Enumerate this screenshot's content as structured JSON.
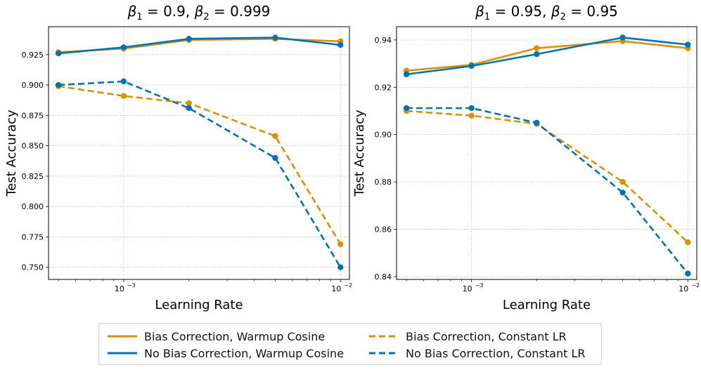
{
  "chart_data": [
    {
      "type": "line",
      "title": "β₁ = 0.9, β₂ = 0.999",
      "title_parts": {
        "b1": "β",
        "s1": "1",
        "eq1": " = 0.9, ",
        "b2": "β",
        "s2": "2",
        "eq2": " = 0.999"
      },
      "xlabel": "Learning Rate",
      "ylabel": "Test Accuracy",
      "xscale": "log",
      "xlim": [
        0.00045,
        0.011
      ],
      "ylim": [
        0.74,
        0.948
      ],
      "x_ticks": [
        {
          "value": 0.001,
          "base": "10",
          "exp": "−3"
        },
        {
          "value": 0.01,
          "base": "10",
          "exp": "−2"
        }
      ],
      "y_ticks": [
        0.75,
        0.775,
        0.8,
        0.825,
        0.85,
        0.875,
        0.9,
        0.925
      ],
      "y_tick_labels": [
        "0.750",
        "0.775",
        "0.800",
        "0.825",
        "0.850",
        "0.875",
        "0.900",
        "0.925"
      ],
      "grid": true,
      "x": [
        0.0005,
        0.001,
        0.002,
        0.005,
        0.01
      ],
      "series": [
        {
          "name": "Bias Correction, Warmup Cosine",
          "color": "#de8f05",
          "dash": "solid",
          "values": [
            0.927,
            0.93,
            0.937,
            0.938,
            0.936
          ]
        },
        {
          "name": "No Bias Correction, Warmup Cosine",
          "color": "#0173b2",
          "dash": "solid",
          "values": [
            0.926,
            0.931,
            0.938,
            0.939,
            0.933
          ]
        },
        {
          "name": "Bias Correction, Constant LR",
          "color": "#de8f05",
          "dash": "dashed",
          "values": [
            0.899,
            0.891,
            0.885,
            0.858,
            0.769
          ]
        },
        {
          "name": "No Bias Correction, Constant LR",
          "color": "#0173b2",
          "dash": "dashed",
          "values": [
            0.9,
            0.903,
            0.881,
            0.84,
            0.75
          ]
        }
      ]
    },
    {
      "type": "line",
      "title": "β₁ = 0.95, β₂ = 0.95",
      "title_parts": {
        "b1": "β",
        "s1": "1",
        "eq1": " = 0.95, ",
        "b2": "β",
        "s2": "2",
        "eq2": " = 0.95"
      },
      "xlabel": "Learning Rate",
      "ylabel": "Test Accuracy",
      "xscale": "log",
      "xlim": [
        0.00045,
        0.011
      ],
      "ylim": [
        0.8388,
        0.9456
      ],
      "x_ticks": [
        {
          "value": 0.001,
          "base": "10",
          "exp": "−3"
        },
        {
          "value": 0.01,
          "base": "10",
          "exp": "−2"
        }
      ],
      "y_ticks": [
        0.84,
        0.86,
        0.88,
        0.9,
        0.92,
        0.94
      ],
      "y_tick_labels": [
        "0.84",
        "0.86",
        "0.88",
        "0.90",
        "0.92",
        "0.94"
      ],
      "grid": true,
      "x": [
        0.0005,
        0.001,
        0.002,
        0.005,
        0.01
      ],
      "series": [
        {
          "name": "Bias Correction, Warmup Cosine",
          "color": "#de8f05",
          "dash": "solid",
          "values": [
            0.927,
            0.9295,
            0.9365,
            0.9395,
            0.9365
          ]
        },
        {
          "name": "No Bias Correction, Warmup Cosine",
          "color": "#0173b2",
          "dash": "solid",
          "values": [
            0.9255,
            0.929,
            0.934,
            0.941,
            0.938
          ]
        },
        {
          "name": "Bias Correction, Constant LR",
          "color": "#de8f05",
          "dash": "dashed",
          "values": [
            0.91,
            0.908,
            0.9045,
            0.88,
            0.8545
          ]
        },
        {
          "name": "No Bias Correction, Constant LR",
          "color": "#0173b2",
          "dash": "dashed",
          "values": [
            0.9112,
            0.9112,
            0.905,
            0.8755,
            0.8413
          ]
        }
      ]
    }
  ],
  "legend": {
    "items": [
      {
        "label": "Bias Correction, Warmup Cosine",
        "color": "#de8f05",
        "dash": "solid"
      },
      {
        "label": "No Bias Correction, Warmup Cosine",
        "color": "#0173b2",
        "dash": "solid"
      },
      {
        "label": "Bias Correction, Constant LR",
        "color": "#de8f05",
        "dash": "dashed"
      },
      {
        "label": "No Bias Correction, Constant LR",
        "color": "#0173b2",
        "dash": "dashed"
      }
    ]
  }
}
